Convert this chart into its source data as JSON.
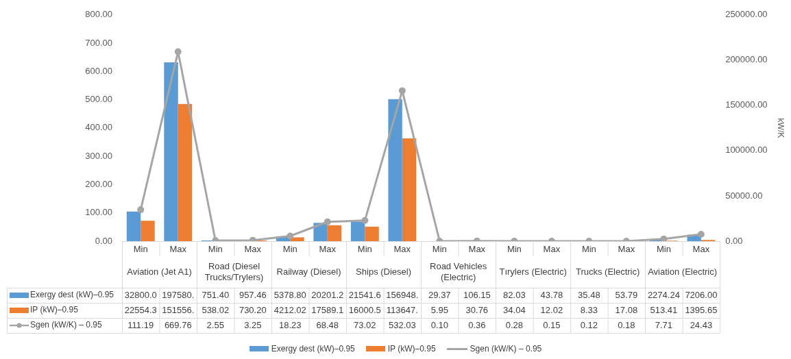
{
  "chart_data": {
    "type": "bar",
    "categories": [
      "Min",
      "Max",
      "Min",
      "Max",
      "Min",
      "Max",
      "Min",
      "Max",
      "Min",
      "Max",
      "Min",
      "Max",
      "Min",
      "Max",
      "Min",
      "Max"
    ],
    "annotations": [
      "Aviation (Jet A1)",
      "Road (Diesel Trucks/Trylers)",
      "Railway (Diesel)",
      "Ships (Diesel)",
      "Road Vehicles (Electric)",
      "Tırylers (Electric)",
      "Trucks (Electric)",
      "Aviation (Electric)"
    ],
    "series": [
      {
        "name": "Exergy dest (kW)–0.95",
        "axis": "y2",
        "color": "#5b9bd5",
        "values": [
          32800.0,
          197580,
          751.4,
          957.46,
          5378.8,
          20201.2,
          21541.6,
          156948,
          29.37,
          106.15,
          82.03,
          43.78,
          35.48,
          53.79,
          2274.24,
          7206.0
        ],
        "value_labels": [
          "32800.0",
          "197580.",
          "751.40",
          "957.46",
          "5378.80",
          "20201.2",
          "21541.6",
          "156948.",
          "29.37",
          "106.15",
          "82.03",
          "43.78",
          "35.48",
          "53.79",
          "2274.24",
          "7206.00"
        ]
      },
      {
        "name": "IP (kW)–0.95",
        "axis": "y2",
        "color": "#ed7d31",
        "values": [
          22554.3,
          151556,
          538.02,
          730.2,
          4212.02,
          17589.1,
          16000.5,
          113647,
          5.95,
          30.76,
          34.04,
          12.02,
          8.33,
          17.08,
          513.41,
          1395.65
        ],
        "value_labels": [
          "22554.3",
          "151556.",
          "538.02",
          "730.20",
          "4212.02",
          "17589.1",
          "16000.5",
          "113647.",
          "5.95",
          "30.76",
          "34.04",
          "12.02",
          "8.33",
          "17.08",
          "513.41",
          "1395.65"
        ]
      },
      {
        "name": "Sgen (kW/K) – 0.95",
        "type": "line",
        "axis": "y",
        "color": "#a5a5a5",
        "values": [
          111.19,
          669.76,
          2.55,
          3.25,
          18.23,
          68.48,
          73.02,
          532.03,
          0.1,
          0.36,
          0.28,
          0.15,
          0.12,
          0.18,
          7.71,
          24.43
        ],
        "value_labels": [
          "111.19",
          "669.76",
          "2.55",
          "3.25",
          "18.23",
          "68.48",
          "73.02",
          "532.03",
          "0.10",
          "0.36",
          "0.28",
          "0.15",
          "0.12",
          "0.18",
          "7.71",
          "24.43"
        ]
      }
    ],
    "ylim": [
      0,
      800
    ],
    "yticks": [
      {
        "value": 0,
        "label": "0.00"
      },
      {
        "value": 100,
        "label": "100.00"
      },
      {
        "value": 200,
        "label": "200.00"
      },
      {
        "value": 300,
        "label": "300.00"
      },
      {
        "value": 400,
        "label": "400.00"
      },
      {
        "value": 500,
        "label": "500.00"
      },
      {
        "value": 600,
        "label": "600.00"
      },
      {
        "value": 700,
        "label": "700.00"
      },
      {
        "value": 800,
        "label": "800.00"
      }
    ],
    "y2lim": [
      0,
      250000
    ],
    "y2ticks": [
      {
        "value": 0,
        "label": "0.00"
      },
      {
        "value": 50000,
        "label": "50000.00"
      },
      {
        "value": 100000,
        "label": "100000.00"
      },
      {
        "value": 150000,
        "label": "150000.00"
      },
      {
        "value": 200000,
        "label": "200000.00"
      },
      {
        "value": 250000,
        "label": "250000.00"
      }
    ],
    "y2label": "kW/K",
    "marker": "circle",
    "legend": "bottom"
  }
}
